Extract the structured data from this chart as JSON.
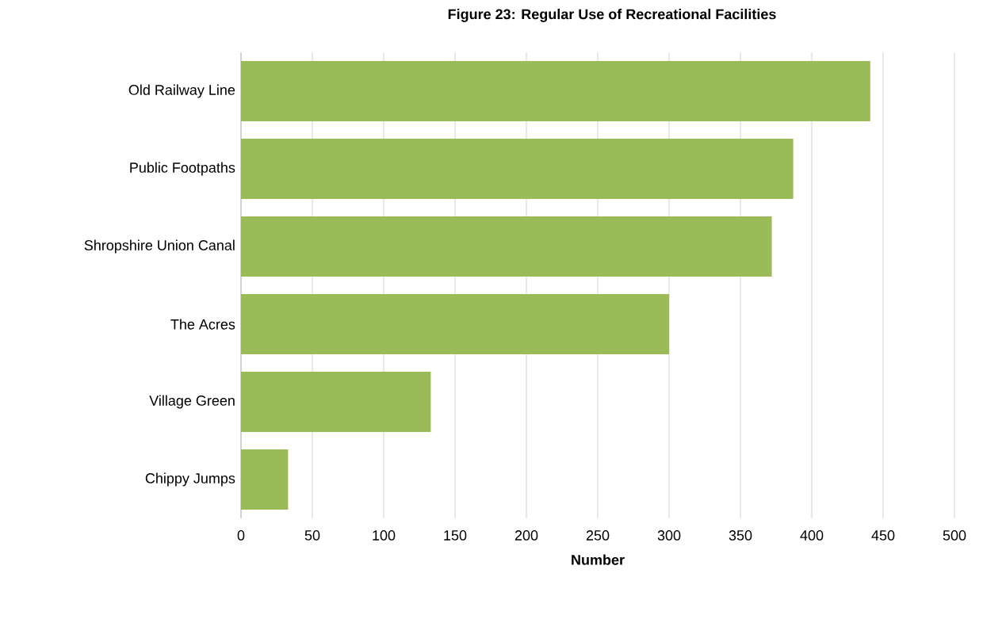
{
  "chart_data": {
    "type": "bar",
    "orientation": "horizontal",
    "title": "Figure 23: Regular Use of Recreational Facilities",
    "xlabel": "Number",
    "categories": [
      "Old Railway Line",
      "Public Footpaths",
      "Shropshire Union Canal",
      "The Acres",
      "Village Green",
      "Chippy Jumps"
    ],
    "values": [
      441,
      387,
      372,
      300,
      133,
      33
    ],
    "color": "#9bbb59",
    "xlim": [
      0,
      500
    ],
    "xticks": [
      0,
      50,
      100,
      150,
      200,
      250,
      300,
      350,
      400,
      450,
      500
    ],
    "grid": "x"
  }
}
